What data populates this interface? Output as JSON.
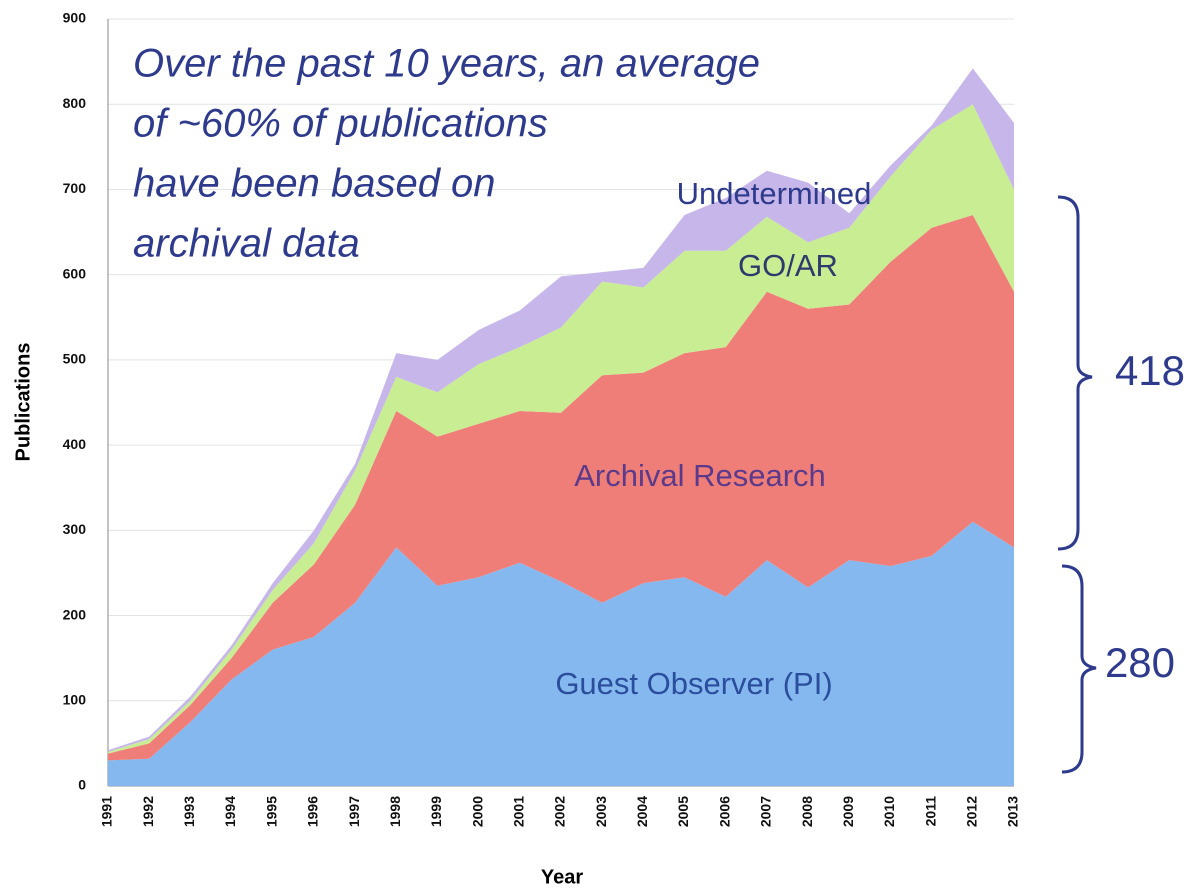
{
  "chart_data": {
    "type": "stacked_area",
    "categories": [
      "1991",
      "1992",
      "1993",
      "1994",
      "1995",
      "1996",
      "1997",
      "1998",
      "1999",
      "2000",
      "2001",
      "2002",
      "2003",
      "2004",
      "2005",
      "2006",
      "2007",
      "2008",
      "2009",
      "2010",
      "2011",
      "2012",
      "2013"
    ],
    "series": [
      {
        "name": "Guest Observer (PI)",
        "color": "#86b8f0",
        "values": [
          30,
          32,
          75,
          125,
          160,
          175,
          215,
          280,
          235,
          245,
          262,
          240,
          215,
          238,
          245,
          222,
          265,
          233,
          265,
          258,
          270,
          310,
          280
        ]
      },
      {
        "name": "Archival Research",
        "color": "#ef7e78",
        "values": [
          8,
          18,
          20,
          25,
          55,
          85,
          115,
          160,
          175,
          180,
          178,
          198,
          267,
          247,
          263,
          293,
          315,
          327,
          300,
          357,
          385,
          360,
          300
        ]
      },
      {
        "name": "GO/AR",
        "color": "#c9ed92",
        "values": [
          2,
          5,
          5,
          10,
          15,
          25,
          40,
          40,
          52,
          70,
          75,
          100,
          110,
          100,
          120,
          113,
          88,
          78,
          90,
          100,
          115,
          130,
          120
        ]
      },
      {
        "name": "Undetermined",
        "color": "#c6b6ea",
        "values": [
          2,
          3,
          5,
          5,
          8,
          15,
          8,
          28,
          38,
          40,
          43,
          60,
          11,
          23,
          42,
          62,
          54,
          70,
          17,
          13,
          5,
          42,
          78
        ]
      }
    ],
    "x_label": "Year",
    "y_label": "Publications",
    "ylim": [
      0,
      900
    ],
    "yticks": [
      0,
      100,
      200,
      300,
      400,
      500,
      600,
      700,
      800,
      900
    ],
    "grid": true,
    "annotation_lines": [
      "Over the past 10 years, an average",
      "of ~60% of publications",
      "have been based on",
      "archival data"
    ],
    "brace_labels": [
      "418",
      "280"
    ]
  }
}
